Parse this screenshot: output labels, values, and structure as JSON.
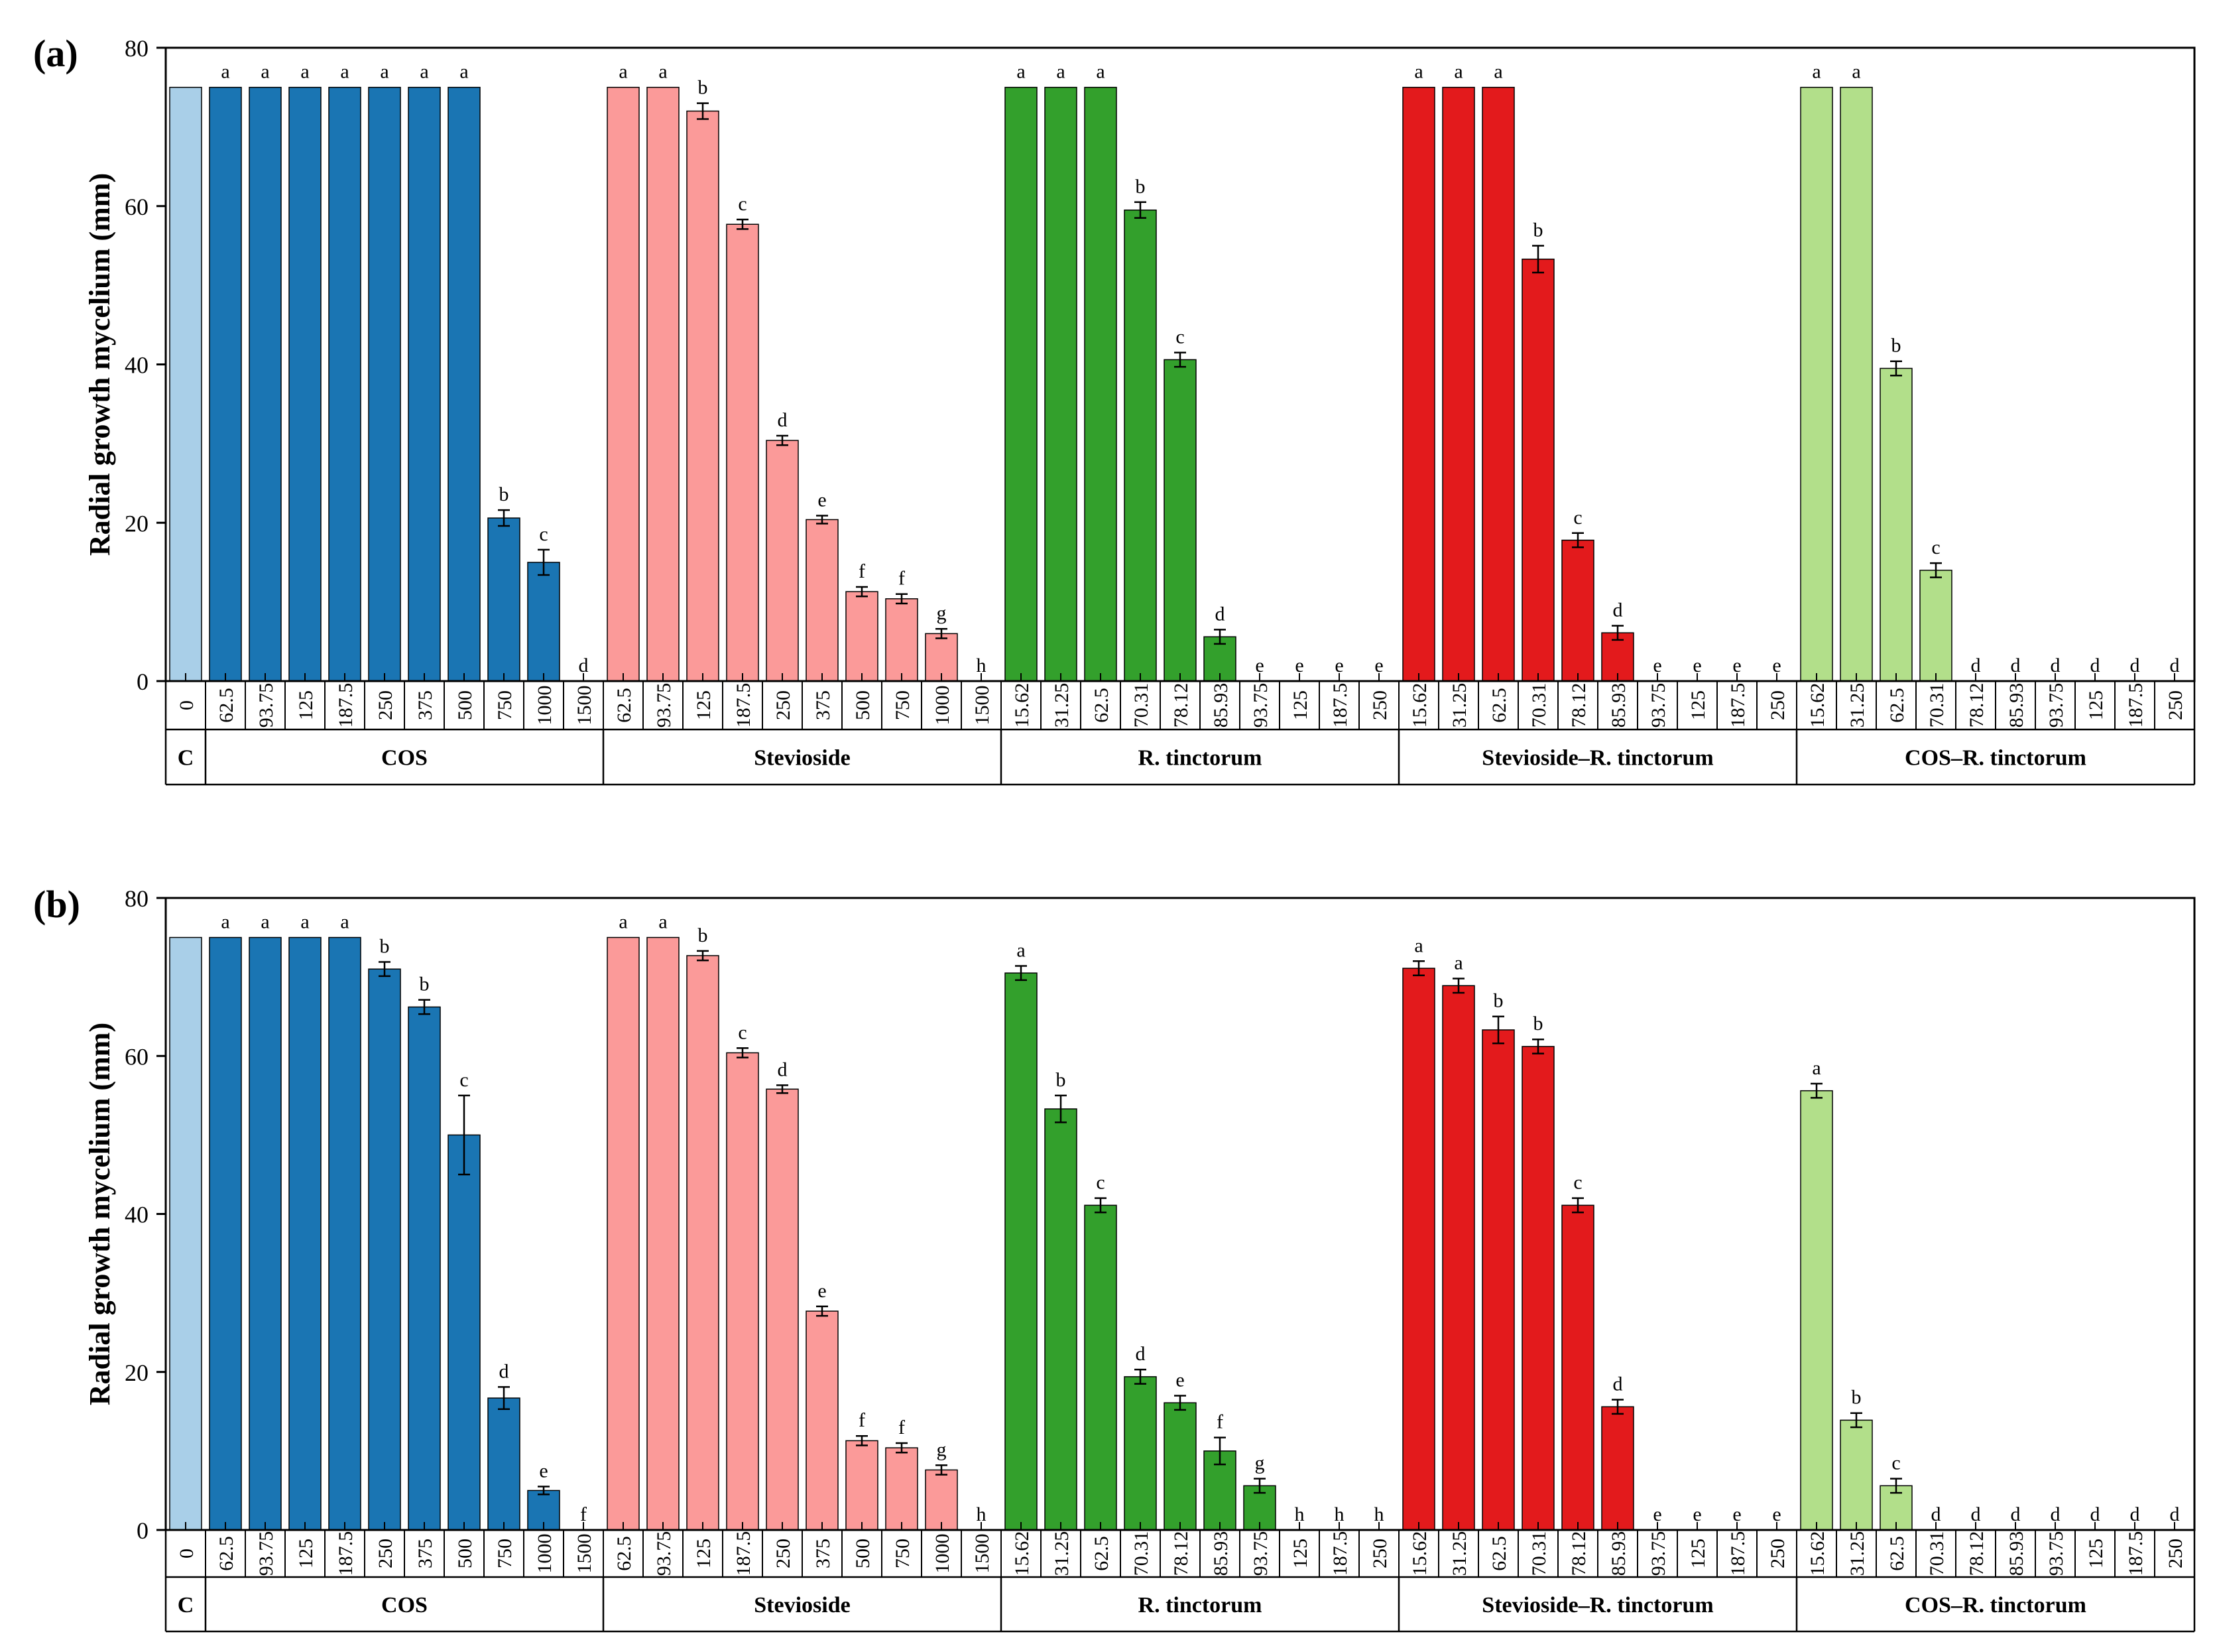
{
  "chart_data": [
    {
      "type": "bar",
      "panel_label": "(a)",
      "ylabel": "Radial growth mycelium (mm)",
      "ylim": [
        0,
        80
      ],
      "yticks": [
        "0",
        "20",
        "40",
        "60",
        "80"
      ],
      "groups": [
        {
          "name": "C",
          "color": "#a9cfe8",
          "categories": [
            "0"
          ],
          "values": [
            75
          ],
          "errors": [
            0
          ],
          "letters": [
            ""
          ]
        },
        {
          "name": "COS",
          "color": "#1a75b3",
          "categories": [
            "62.5",
            "93.75",
            "125",
            "187.5",
            "250",
            "375",
            "500",
            "750",
            "1000",
            "1500"
          ],
          "values": [
            75,
            75,
            75,
            75,
            75,
            75,
            75,
            20.6,
            15,
            0
          ],
          "errors": [
            0,
            0,
            0,
            0,
            0,
            0,
            0,
            1,
            1.6,
            0
          ],
          "letters": [
            "a",
            "a",
            "a",
            "a",
            "a",
            "a",
            "a",
            "b",
            "c",
            "d"
          ]
        },
        {
          "name": "Stevioside",
          "color": "#fb9a99",
          "categories": [
            "62.5",
            "93.75",
            "125",
            "187.5",
            "250",
            "375",
            "500",
            "750",
            "1000",
            "1500"
          ],
          "values": [
            75,
            75,
            72,
            57.7,
            30.4,
            20.4,
            11.3,
            10.4,
            6,
            0
          ],
          "errors": [
            0,
            0,
            1,
            0.6,
            0.6,
            0.5,
            0.6,
            0.6,
            0.6,
            0
          ],
          "letters": [
            "a",
            "a",
            "b",
            "c",
            "d",
            "e",
            "f",
            "f",
            "g",
            "h"
          ]
        },
        {
          "name": "R. tinctorum",
          "color": "#33a02c",
          "categories": [
            "15.62",
            "31.25",
            "62.5",
            "70.31",
            "78.12",
            "85.93",
            "93.75",
            "125",
            "187.5",
            "250"
          ],
          "values": [
            75,
            75,
            75,
            59.5,
            40.6,
            5.6,
            0,
            0,
            0,
            0
          ],
          "errors": [
            0,
            0,
            0,
            1,
            0.9,
            0.9,
            0,
            0,
            0,
            0
          ],
          "letters": [
            "a",
            "a",
            "a",
            "b",
            "c",
            "d",
            "e",
            "e",
            "e",
            "e"
          ]
        },
        {
          "name": "Stevioside–R. tinctorum",
          "color": "#e31a1c",
          "categories": [
            "15.62",
            "31.25",
            "62.5",
            "70.31",
            "78.12",
            "85.93",
            "93.75",
            "125",
            "187.5",
            "250"
          ],
          "values": [
            75,
            75,
            75,
            53.3,
            17.8,
            6.1,
            0,
            0,
            0,
            0
          ],
          "errors": [
            0,
            0,
            0,
            1.7,
            0.9,
            0.9,
            0,
            0,
            0,
            0
          ],
          "letters": [
            "a",
            "a",
            "a",
            "b",
            "c",
            "d",
            "e",
            "e",
            "e",
            "e"
          ]
        },
        {
          "name": "COS–R. tinctorum",
          "color": "#b2df8a",
          "categories": [
            "15.62",
            "31.25",
            "62.5",
            "70.31",
            "78.12",
            "85.93",
            "93.75",
            "125",
            "187.5",
            "250"
          ],
          "values": [
            75,
            75,
            39.5,
            14,
            0,
            0,
            0,
            0,
            0,
            0
          ],
          "errors": [
            0,
            0,
            0.9,
            0.9,
            0,
            0,
            0,
            0,
            0,
            0
          ],
          "letters": [
            "a",
            "a",
            "b",
            "c",
            "d",
            "d",
            "d",
            "d",
            "d",
            "d"
          ]
        }
      ]
    },
    {
      "type": "bar",
      "panel_label": "(b)",
      "ylabel": "Radial growth mycelium (mm)",
      "ylim": [
        0,
        80
      ],
      "yticks": [
        "0",
        "20",
        "40",
        "60",
        "80"
      ],
      "groups": [
        {
          "name": "C",
          "color": "#a9cfe8",
          "categories": [
            "0"
          ],
          "values": [
            75
          ],
          "errors": [
            0
          ],
          "letters": [
            ""
          ]
        },
        {
          "name": "COS",
          "color": "#1a75b3",
          "categories": [
            "62.5",
            "93.75",
            "125",
            "187.5",
            "250",
            "375",
            "500",
            "750",
            "1000",
            "1500"
          ],
          "values": [
            75,
            75,
            75,
            75,
            71,
            66.2,
            50,
            16.7,
            5,
            0
          ],
          "errors": [
            0,
            0,
            0,
            0,
            0.9,
            0.9,
            5,
            1.4,
            0.5,
            0
          ],
          "letters": [
            "a",
            "a",
            "a",
            "a",
            "b",
            "b",
            "c",
            "d",
            "e",
            "f"
          ]
        },
        {
          "name": "Stevioside",
          "color": "#fb9a99",
          "categories": [
            "62.5",
            "93.75",
            "125",
            "187.5",
            "250",
            "375",
            "500",
            "750",
            "1000",
            "1500"
          ],
          "values": [
            75,
            75,
            72.7,
            60.4,
            55.8,
            27.7,
            11.3,
            10.4,
            7.6,
            0
          ],
          "errors": [
            0,
            0,
            0.6,
            0.6,
            0.5,
            0.6,
            0.6,
            0.6,
            0.6,
            0
          ],
          "letters": [
            "a",
            "a",
            "b",
            "c",
            "d",
            "e",
            "f",
            "f",
            "g",
            "h"
          ]
        },
        {
          "name": "R. tinctorum",
          "color": "#33a02c",
          "categories": [
            "15.62",
            "31.25",
            "62.5",
            "70.31",
            "78.12",
            "85.93",
            "93.75",
            "125",
            "187.5",
            "250"
          ],
          "values": [
            70.5,
            53.3,
            41.1,
            19.4,
            16.1,
            10,
            5.6,
            0,
            0,
            0
          ],
          "errors": [
            0.9,
            1.7,
            0.9,
            0.9,
            0.9,
            1.7,
            0.9,
            0,
            0,
            0
          ],
          "letters": [
            "a",
            "b",
            "c",
            "d",
            "e",
            "f",
            "g",
            "h",
            "h",
            "h"
          ]
        },
        {
          "name": "Stevioside–R. tinctorum",
          "color": "#e31a1c",
          "categories": [
            "15.62",
            "31.25",
            "62.5",
            "70.31",
            "78.12",
            "85.93",
            "93.75",
            "125",
            "187.5",
            "250"
          ],
          "values": [
            71.1,
            68.9,
            63.3,
            61.2,
            41.1,
            15.6,
            0,
            0,
            0,
            0
          ],
          "errors": [
            0.9,
            0.9,
            1.7,
            0.9,
            0.9,
            0.9,
            0,
            0,
            0,
            0
          ],
          "letters": [
            "a",
            "a",
            "b",
            "b",
            "c",
            "d",
            "e",
            "e",
            "e",
            "e"
          ]
        },
        {
          "name": "COS–R. tinctorum",
          "color": "#b2df8a",
          "categories": [
            "15.62",
            "31.25",
            "62.5",
            "70.31",
            "78.12",
            "85.93",
            "93.75",
            "125",
            "187.5",
            "250"
          ],
          "values": [
            55.6,
            13.9,
            5.6,
            0,
            0,
            0,
            0,
            0,
            0,
            0
          ],
          "errors": [
            0.9,
            0.9,
            0.9,
            0,
            0,
            0,
            0,
            0,
            0,
            0
          ],
          "letters": [
            "a",
            "b",
            "c",
            "d",
            "d",
            "d",
            "d",
            "d",
            "d",
            "d"
          ]
        }
      ]
    }
  ]
}
